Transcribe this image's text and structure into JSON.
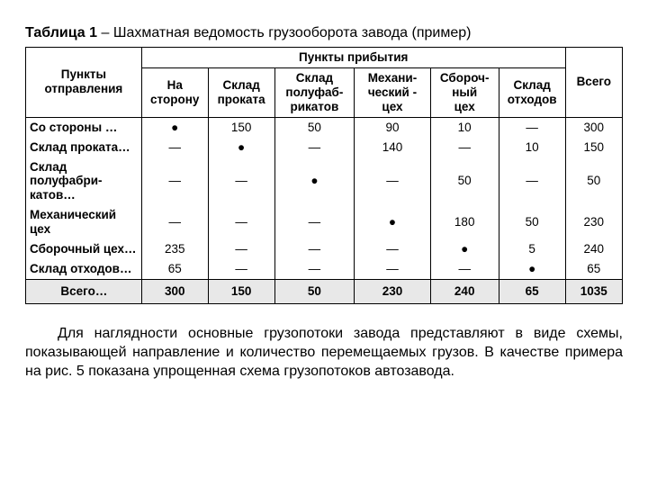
{
  "title_bold": "Таблица 1",
  "title_rest": " – Шахматная ведомость грузооборота завода (пример)",
  "header": {
    "origin": "Пункты отправления",
    "arrival": "Пункты прибытия",
    "total": "Всего",
    "cols": [
      "На сторону",
      "Склад проката",
      "Склад полуфаб-рикатов",
      "Механи-ческий - цех",
      "Сбороч-ный цех",
      "Склад отходов"
    ]
  },
  "rows": [
    {
      "label": "Со стороны …",
      "cells": [
        "●",
        "150",
        "50",
        "90",
        "10",
        "—",
        "300"
      ]
    },
    {
      "label": "Склад проката…",
      "cells": [
        "—",
        "●",
        "—",
        "140",
        "—",
        "10",
        "150"
      ]
    },
    {
      "label": "Склад полуфабри-катов…",
      "cells": [
        "—",
        "—",
        "●",
        "—",
        "50",
        "—",
        "50"
      ]
    },
    {
      "label": "Механический цех",
      "cells": [
        "—",
        "—",
        "—",
        "●",
        "180",
        "50",
        "230"
      ]
    },
    {
      "label": "Сборочный цех…",
      "cells": [
        "235",
        "—",
        "—",
        "—",
        "●",
        "5",
        "240"
      ]
    },
    {
      "label": "Склад отходов…",
      "cells": [
        "65",
        "—",
        "—",
        "—",
        "—",
        "●",
        "65"
      ]
    }
  ],
  "footer": {
    "label": "Всего…",
    "cells": [
      "300",
      "150",
      "50",
      "230",
      "240",
      "65",
      "1035"
    ]
  },
  "paragraph": "Для наглядности основные грузопотоки завода представляют в виде схемы, показывающей направление и количество перемещаемых грузов. В качестве примера на рис. 5 показана упрощенная схема грузопотоков автозавода.",
  "style": {
    "page_bg": "#ffffff",
    "text_color": "#000000",
    "border_color": "#000000",
    "footer_bg": "#e8e8e8",
    "title_fontsize": 16,
    "table_fontsize": 13.5,
    "para_fontsize": 16
  }
}
